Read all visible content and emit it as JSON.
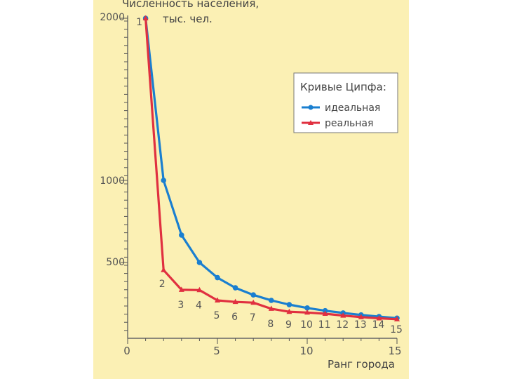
{
  "chart_data": {
    "type": "line",
    "title": "",
    "ylabel_line1": "Численность населения,",
    "ylabel_line2": "тыс. чел.",
    "xlabel": "Ранг города",
    "xlim": [
      0,
      15
    ],
    "ylim": [
      0,
      2000
    ],
    "x_ticks": [
      "0",
      "5",
      "10",
      "15"
    ],
    "y_ticks": [
      "500",
      "1000",
      "2000"
    ],
    "legend_title": "Кривые Ципфа:",
    "legend_position": "top-right",
    "series": [
      {
        "name": "идеальная",
        "color": "#1a7fd0",
        "marker": "circle",
        "x": [
          1,
          2,
          3,
          4,
          5,
          6,
          7,
          8,
          9,
          10,
          11,
          12,
          13,
          14,
          15
        ],
        "y": [
          2000,
          1000,
          667,
          500,
          400,
          333,
          286,
          250,
          222,
          200,
          182,
          167,
          154,
          143,
          133
        ]
      },
      {
        "name": "реальная",
        "color": "#e03040",
        "marker": "triangle",
        "x": [
          1,
          2,
          3,
          4,
          5,
          6,
          7,
          8,
          9,
          10,
          11,
          12,
          13,
          14,
          15
        ],
        "y": [
          2000,
          450,
          320,
          318,
          250,
          240,
          235,
          195,
          175,
          170,
          162,
          150,
          140,
          132,
          126
        ]
      }
    ],
    "point_labels": [
      "1",
      "2",
      "3",
      "4",
      "5",
      "6",
      "7",
      "8",
      "9",
      "10",
      "11",
      "12",
      "13",
      "14",
      "15"
    ]
  }
}
